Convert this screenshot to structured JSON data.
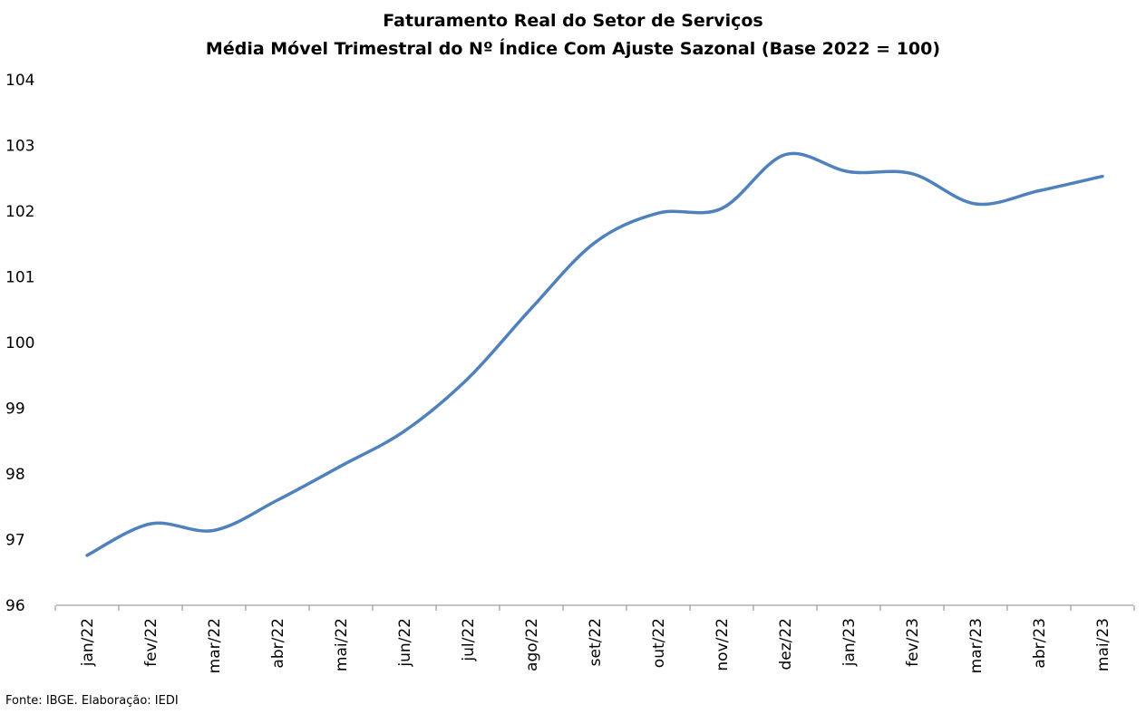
{
  "chart_data": {
    "type": "line",
    "title": "Faturamento Real do Setor de Serviços",
    "subtitle": "Média Móvel Trimestral do Nº Índice Com Ajuste Sazonal (Base 2022 = 100)",
    "xlabel": "",
    "ylabel": "",
    "ylim": [
      96,
      104
    ],
    "yticks": [
      96,
      97,
      98,
      99,
      100,
      101,
      102,
      103,
      104
    ],
    "grid": false,
    "legend": "none",
    "categories": [
      "jan/22",
      "fev/22",
      "mar/22",
      "abr/22",
      "mai/22",
      "jun/22",
      "jul/22",
      "ago/22",
      "set/22",
      "out/22",
      "nov/22",
      "dez/22",
      "jan/23",
      "fev/23",
      "mar/23",
      "abr/23",
      "mai/23"
    ],
    "series": [
      {
        "color": "#4F81BD",
        "values": [
          96.76,
          97.24,
          97.14,
          97.6,
          98.12,
          98.65,
          99.45,
          100.52,
          101.52,
          101.97,
          102.04,
          102.86,
          102.6,
          102.57,
          102.11,
          102.31,
          102.53
        ]
      }
    ],
    "source": "Fonte: IBGE. Elaboração: IEDI"
  }
}
